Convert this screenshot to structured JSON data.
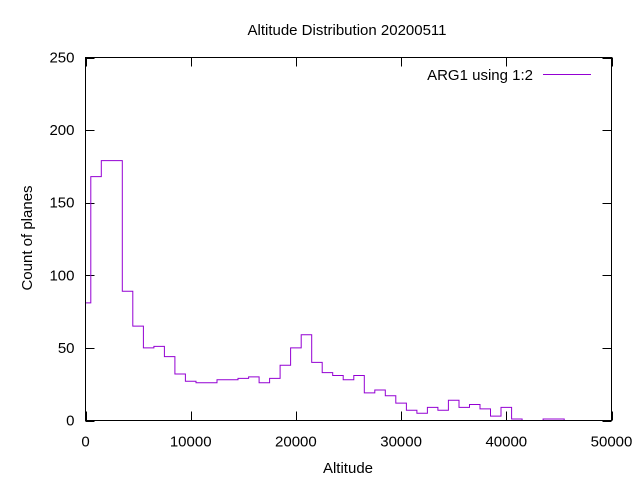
{
  "chart_data": {
    "type": "line",
    "style": "steps",
    "title": "Altitude Distribution 20200511",
    "xlabel": "Altitude",
    "ylabel": "Count of planes",
    "xlim": [
      0,
      50000
    ],
    "ylim": [
      0,
      250
    ],
    "xticks": [
      0,
      10000,
      20000,
      30000,
      40000,
      50000
    ],
    "yticks": [
      0,
      50,
      100,
      150,
      200,
      250
    ],
    "grid": false,
    "legend": {
      "position": "top-right"
    },
    "series": [
      {
        "name": "ARG1 using 1:2",
        "color": "#9400d3",
        "x": [
          0,
          500,
          1500,
          2500,
          3500,
          4500,
          5500,
          6500,
          7500,
          8500,
          9500,
          10500,
          11500,
          12500,
          13500,
          14500,
          15500,
          16500,
          17500,
          18500,
          19500,
          20500,
          21500,
          22500,
          23500,
          24500,
          25500,
          26500,
          27500,
          28500,
          29500,
          30500,
          31500,
          32500,
          33500,
          34500,
          35500,
          36500,
          37500,
          38500,
          39500,
          40500,
          41500,
          42500,
          43500,
          44500,
          45500
        ],
        "y": [
          81,
          168,
          179,
          179,
          89,
          65,
          50,
          51,
          44,
          32,
          27,
          26,
          26,
          28,
          28,
          29,
          30,
          26,
          29,
          38,
          50,
          59,
          40,
          33,
          31,
          28,
          31,
          19,
          21,
          17,
          12,
          7,
          5,
          9,
          7,
          14,
          9,
          11,
          8,
          3,
          9,
          1,
          0,
          0,
          1,
          1,
          0
        ]
      }
    ]
  }
}
